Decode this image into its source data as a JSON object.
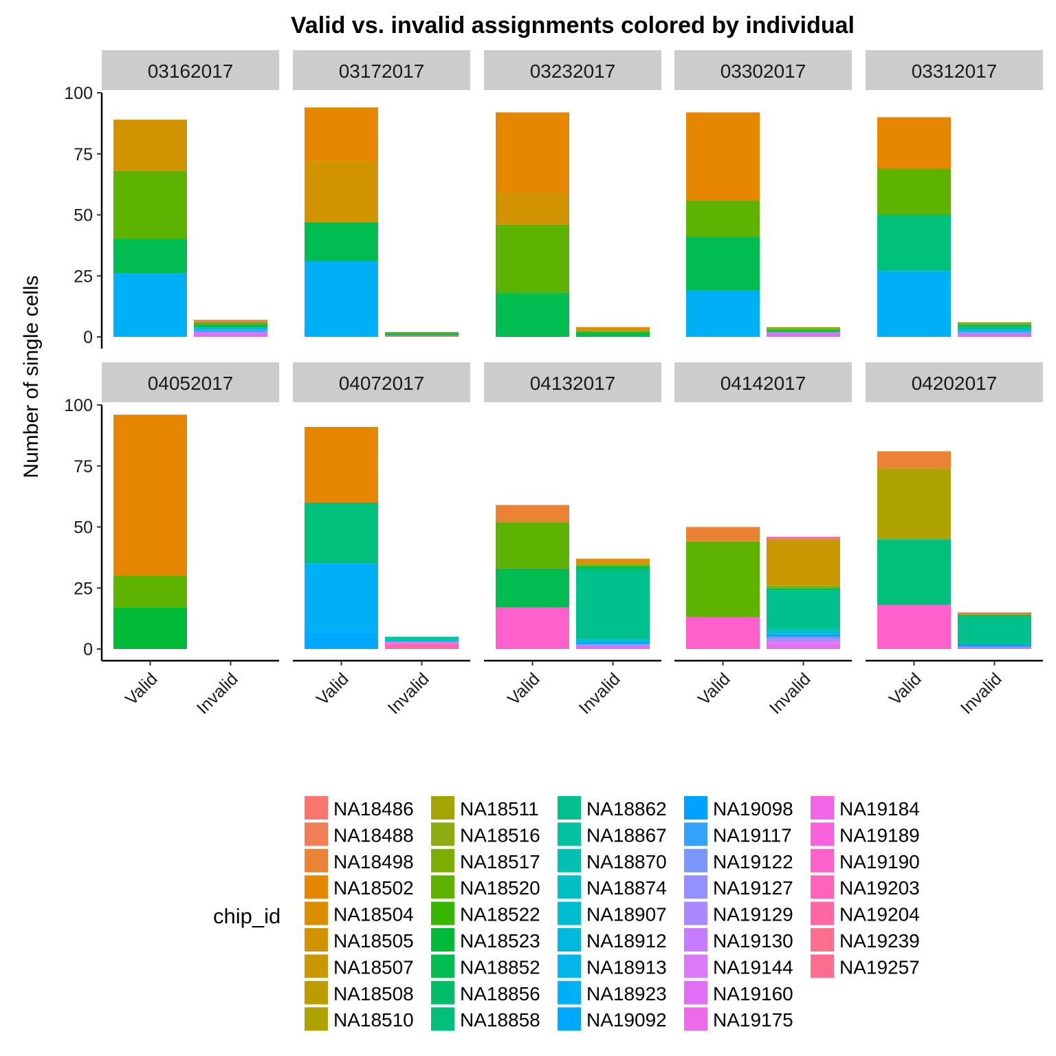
{
  "chart_data": {
    "type": "bar",
    "stacked": true,
    "title": "Valid vs. invalid assignments colored by individual",
    "ylabel": "Number of single cells",
    "xlabel": "",
    "categories": [
      "Valid",
      "Invalid"
    ],
    "ylim": [
      0,
      100
    ],
    "yticks": [
      0,
      25,
      50,
      75,
      100
    ],
    "legend": {
      "title": "chip_id",
      "placement": "bottom",
      "entries": [
        {
          "name": "NA18486",
          "color": "#F8766D"
        },
        {
          "name": "NA18488",
          "color": "#F07F58"
        },
        {
          "name": "NA18498",
          "color": "#EB8335"
        },
        {
          "name": "NA18502",
          "color": "#E58700"
        },
        {
          "name": "NA18504",
          "color": "#DB8E00"
        },
        {
          "name": "NA18505",
          "color": "#D29300"
        },
        {
          "name": "NA18507",
          "color": "#C99800"
        },
        {
          "name": "NA18508",
          "color": "#BB9D00"
        },
        {
          "name": "NA18510",
          "color": "#ADA200"
        },
        {
          "name": "NA18511",
          "color": "#A3A500"
        },
        {
          "name": "NA18516",
          "color": "#8EAB12"
        },
        {
          "name": "NA18517",
          "color": "#7CAE00"
        },
        {
          "name": "NA18520",
          "color": "#5EB300"
        },
        {
          "name": "NA18522",
          "color": "#39B600"
        },
        {
          "name": "NA18523",
          "color": "#00BA38"
        },
        {
          "name": "NA18852",
          "color": "#00BC51"
        },
        {
          "name": "NA18856",
          "color": "#00BE67"
        },
        {
          "name": "NA18858",
          "color": "#00C07B"
        },
        {
          "name": "NA18862",
          "color": "#00C08D"
        },
        {
          "name": "NA18867",
          "color": "#00C19F"
        },
        {
          "name": "NA18870",
          "color": "#00C0AF"
        },
        {
          "name": "NA18874",
          "color": "#00BFC4"
        },
        {
          "name": "NA18907",
          "color": "#00BDD0"
        },
        {
          "name": "NA18912",
          "color": "#00BADE"
        },
        {
          "name": "NA18913",
          "color": "#00B6EB"
        },
        {
          "name": "NA18923",
          "color": "#00B0F6"
        },
        {
          "name": "NA19092",
          "color": "#00A9FF"
        },
        {
          "name": "NA19098",
          "color": "#00A2FF"
        },
        {
          "name": "NA19117",
          "color": "#35A2FF"
        },
        {
          "name": "NA19122",
          "color": "#7997FF"
        },
        {
          "name": "NA19127",
          "color": "#9590FF"
        },
        {
          "name": "NA19129",
          "color": "#AC88FF"
        },
        {
          "name": "NA19130",
          "color": "#C77CFF"
        },
        {
          "name": "NA19144",
          "color": "#D87AFA"
        },
        {
          "name": "NA19160",
          "color": "#E36EF6"
        },
        {
          "name": "NA19175",
          "color": "#EE6AEC"
        },
        {
          "name": "NA19184",
          "color": "#F265E7"
        },
        {
          "name": "NA19189",
          "color": "#FA62DB"
        },
        {
          "name": "NA19190",
          "color": "#FF61CC"
        },
        {
          "name": "NA19203",
          "color": "#FF64BC"
        },
        {
          "name": "NA19204",
          "color": "#FF67A4"
        },
        {
          "name": "NA19239",
          "color": "#FD6F8D"
        },
        {
          "name": "NA19257",
          "color": "#FF6C91"
        }
      ]
    },
    "panels": [
      {
        "label": "03162017",
        "valid": [
          {
            "id": "NA18923",
            "value": 26
          },
          {
            "id": "NA18852",
            "value": 14
          },
          {
            "id": "NA18520",
            "value": 28
          },
          {
            "id": "NA18505",
            "value": 21
          }
        ],
        "invalid": [
          {
            "id": "NA19160",
            "value": 2
          },
          {
            "id": "NA19117",
            "value": 1
          },
          {
            "id": "NA18874",
            "value": 1
          },
          {
            "id": "NA18523",
            "value": 1
          },
          {
            "id": "NA18520",
            "value": 1
          },
          {
            "id": "NA18498",
            "value": 1
          }
        ]
      },
      {
        "label": "03172017",
        "valid": [
          {
            "id": "NA18923",
            "value": 31
          },
          {
            "id": "NA18852",
            "value": 16
          },
          {
            "id": "NA18505",
            "value": 25
          },
          {
            "id": "NA18502",
            "value": 22
          }
        ],
        "invalid": [
          {
            "id": "NA19239",
            "value": 0.5
          },
          {
            "id": "NA18852",
            "value": 1
          },
          {
            "id": "NA18520",
            "value": 0.5
          }
        ]
      },
      {
        "label": "03232017",
        "valid": [
          {
            "id": "NA18852",
            "value": 18
          },
          {
            "id": "NA18520",
            "value": 28
          },
          {
            "id": "NA18505",
            "value": 13
          },
          {
            "id": "NA18502",
            "value": 33
          }
        ],
        "invalid": [
          {
            "id": "NA18852",
            "value": 2
          },
          {
            "id": "NA18516",
            "value": 1
          },
          {
            "id": "NA18502",
            "value": 1
          }
        ]
      },
      {
        "label": "03302017",
        "valid": [
          {
            "id": "NA18923",
            "value": 19
          },
          {
            "id": "NA18852",
            "value": 22
          },
          {
            "id": "NA18520",
            "value": 15
          },
          {
            "id": "NA18502",
            "value": 36
          }
        ],
        "invalid": [
          {
            "id": "NA19160",
            "value": 2
          },
          {
            "id": "NA18852",
            "value": 1
          },
          {
            "id": "NA18516",
            "value": 1
          }
        ]
      },
      {
        "label": "03312017",
        "valid": [
          {
            "id": "NA18923",
            "value": 27
          },
          {
            "id": "NA18858",
            "value": 23
          },
          {
            "id": "NA18520",
            "value": 19
          },
          {
            "id": "NA18502",
            "value": 21
          }
        ],
        "invalid": [
          {
            "id": "NA19184",
            "value": 1
          },
          {
            "id": "NA19127",
            "value": 1
          },
          {
            "id": "NA18913",
            "value": 1
          },
          {
            "id": "NA18862",
            "value": 1
          },
          {
            "id": "NA18852",
            "value": 1
          },
          {
            "id": "NA18516",
            "value": 1
          }
        ]
      },
      {
        "label": "04052017",
        "valid": [
          {
            "id": "NA18523",
            "value": 17
          },
          {
            "id": "NA18520",
            "value": 13
          },
          {
            "id": "NA18502",
            "value": 66
          }
        ],
        "invalid": []
      },
      {
        "label": "04072017",
        "valid": [
          {
            "id": "NA19092",
            "value": 7
          },
          {
            "id": "NA18923",
            "value": 28
          },
          {
            "id": "NA18858",
            "value": 25
          },
          {
            "id": "NA18502",
            "value": 31
          }
        ],
        "invalid": [
          {
            "id": "NA19204",
            "value": 2
          },
          {
            "id": "NA19175",
            "value": 1
          },
          {
            "id": "NA18907",
            "value": 1
          },
          {
            "id": "NA18862",
            "value": 1
          }
        ]
      },
      {
        "label": "04132017",
        "valid": [
          {
            "id": "NA19190",
            "value": 17
          },
          {
            "id": "NA18852",
            "value": 16
          },
          {
            "id": "NA18520",
            "value": 19
          },
          {
            "id": "NA18498",
            "value": 7
          }
        ],
        "invalid": [
          {
            "id": "NA19175",
            "value": 1
          },
          {
            "id": "NA19129",
            "value": 1
          },
          {
            "id": "NA19098",
            "value": 1
          },
          {
            "id": "NA18907",
            "value": 1
          },
          {
            "id": "NA18862",
            "value": 28
          },
          {
            "id": "NA18856",
            "value": 1
          },
          {
            "id": "NA18852",
            "value": 1
          },
          {
            "id": "NA18516",
            "value": 1
          },
          {
            "id": "NA18504",
            "value": 2
          }
        ]
      },
      {
        "label": "04142017",
        "valid": [
          {
            "id": "NA19190",
            "value": 13
          },
          {
            "id": "NA18520",
            "value": 31
          },
          {
            "id": "NA18498",
            "value": 6
          }
        ],
        "invalid": [
          {
            "id": "NA19175",
            "value": 1
          },
          {
            "id": "NA19160",
            "value": 1
          },
          {
            "id": "NA19144",
            "value": 1
          },
          {
            "id": "NA19130",
            "value": 1
          },
          {
            "id": "NA19122",
            "value": 1
          },
          {
            "id": "NA19098",
            "value": 1
          },
          {
            "id": "NA18907",
            "value": 2
          },
          {
            "id": "NA18862",
            "value": 16
          },
          {
            "id": "NA18852",
            "value": 1
          },
          {
            "id": "NA18516",
            "value": 1
          },
          {
            "id": "NA18507",
            "value": 19
          },
          {
            "id": "NA19204",
            "value": 1
          }
        ]
      },
      {
        "label": "04202017",
        "valid": [
          {
            "id": "NA19190",
            "value": 18
          },
          {
            "id": "NA18858",
            "value": 27
          },
          {
            "id": "NA18510",
            "value": 29
          },
          {
            "id": "NA18498",
            "value": 7
          }
        ],
        "invalid": [
          {
            "id": "NA19129",
            "value": 1
          },
          {
            "id": "NA19098",
            "value": 1
          },
          {
            "id": "NA18862",
            "value": 11
          },
          {
            "id": "NA18852",
            "value": 1
          },
          {
            "id": "NA18498",
            "value": 1
          }
        ]
      }
    ]
  }
}
